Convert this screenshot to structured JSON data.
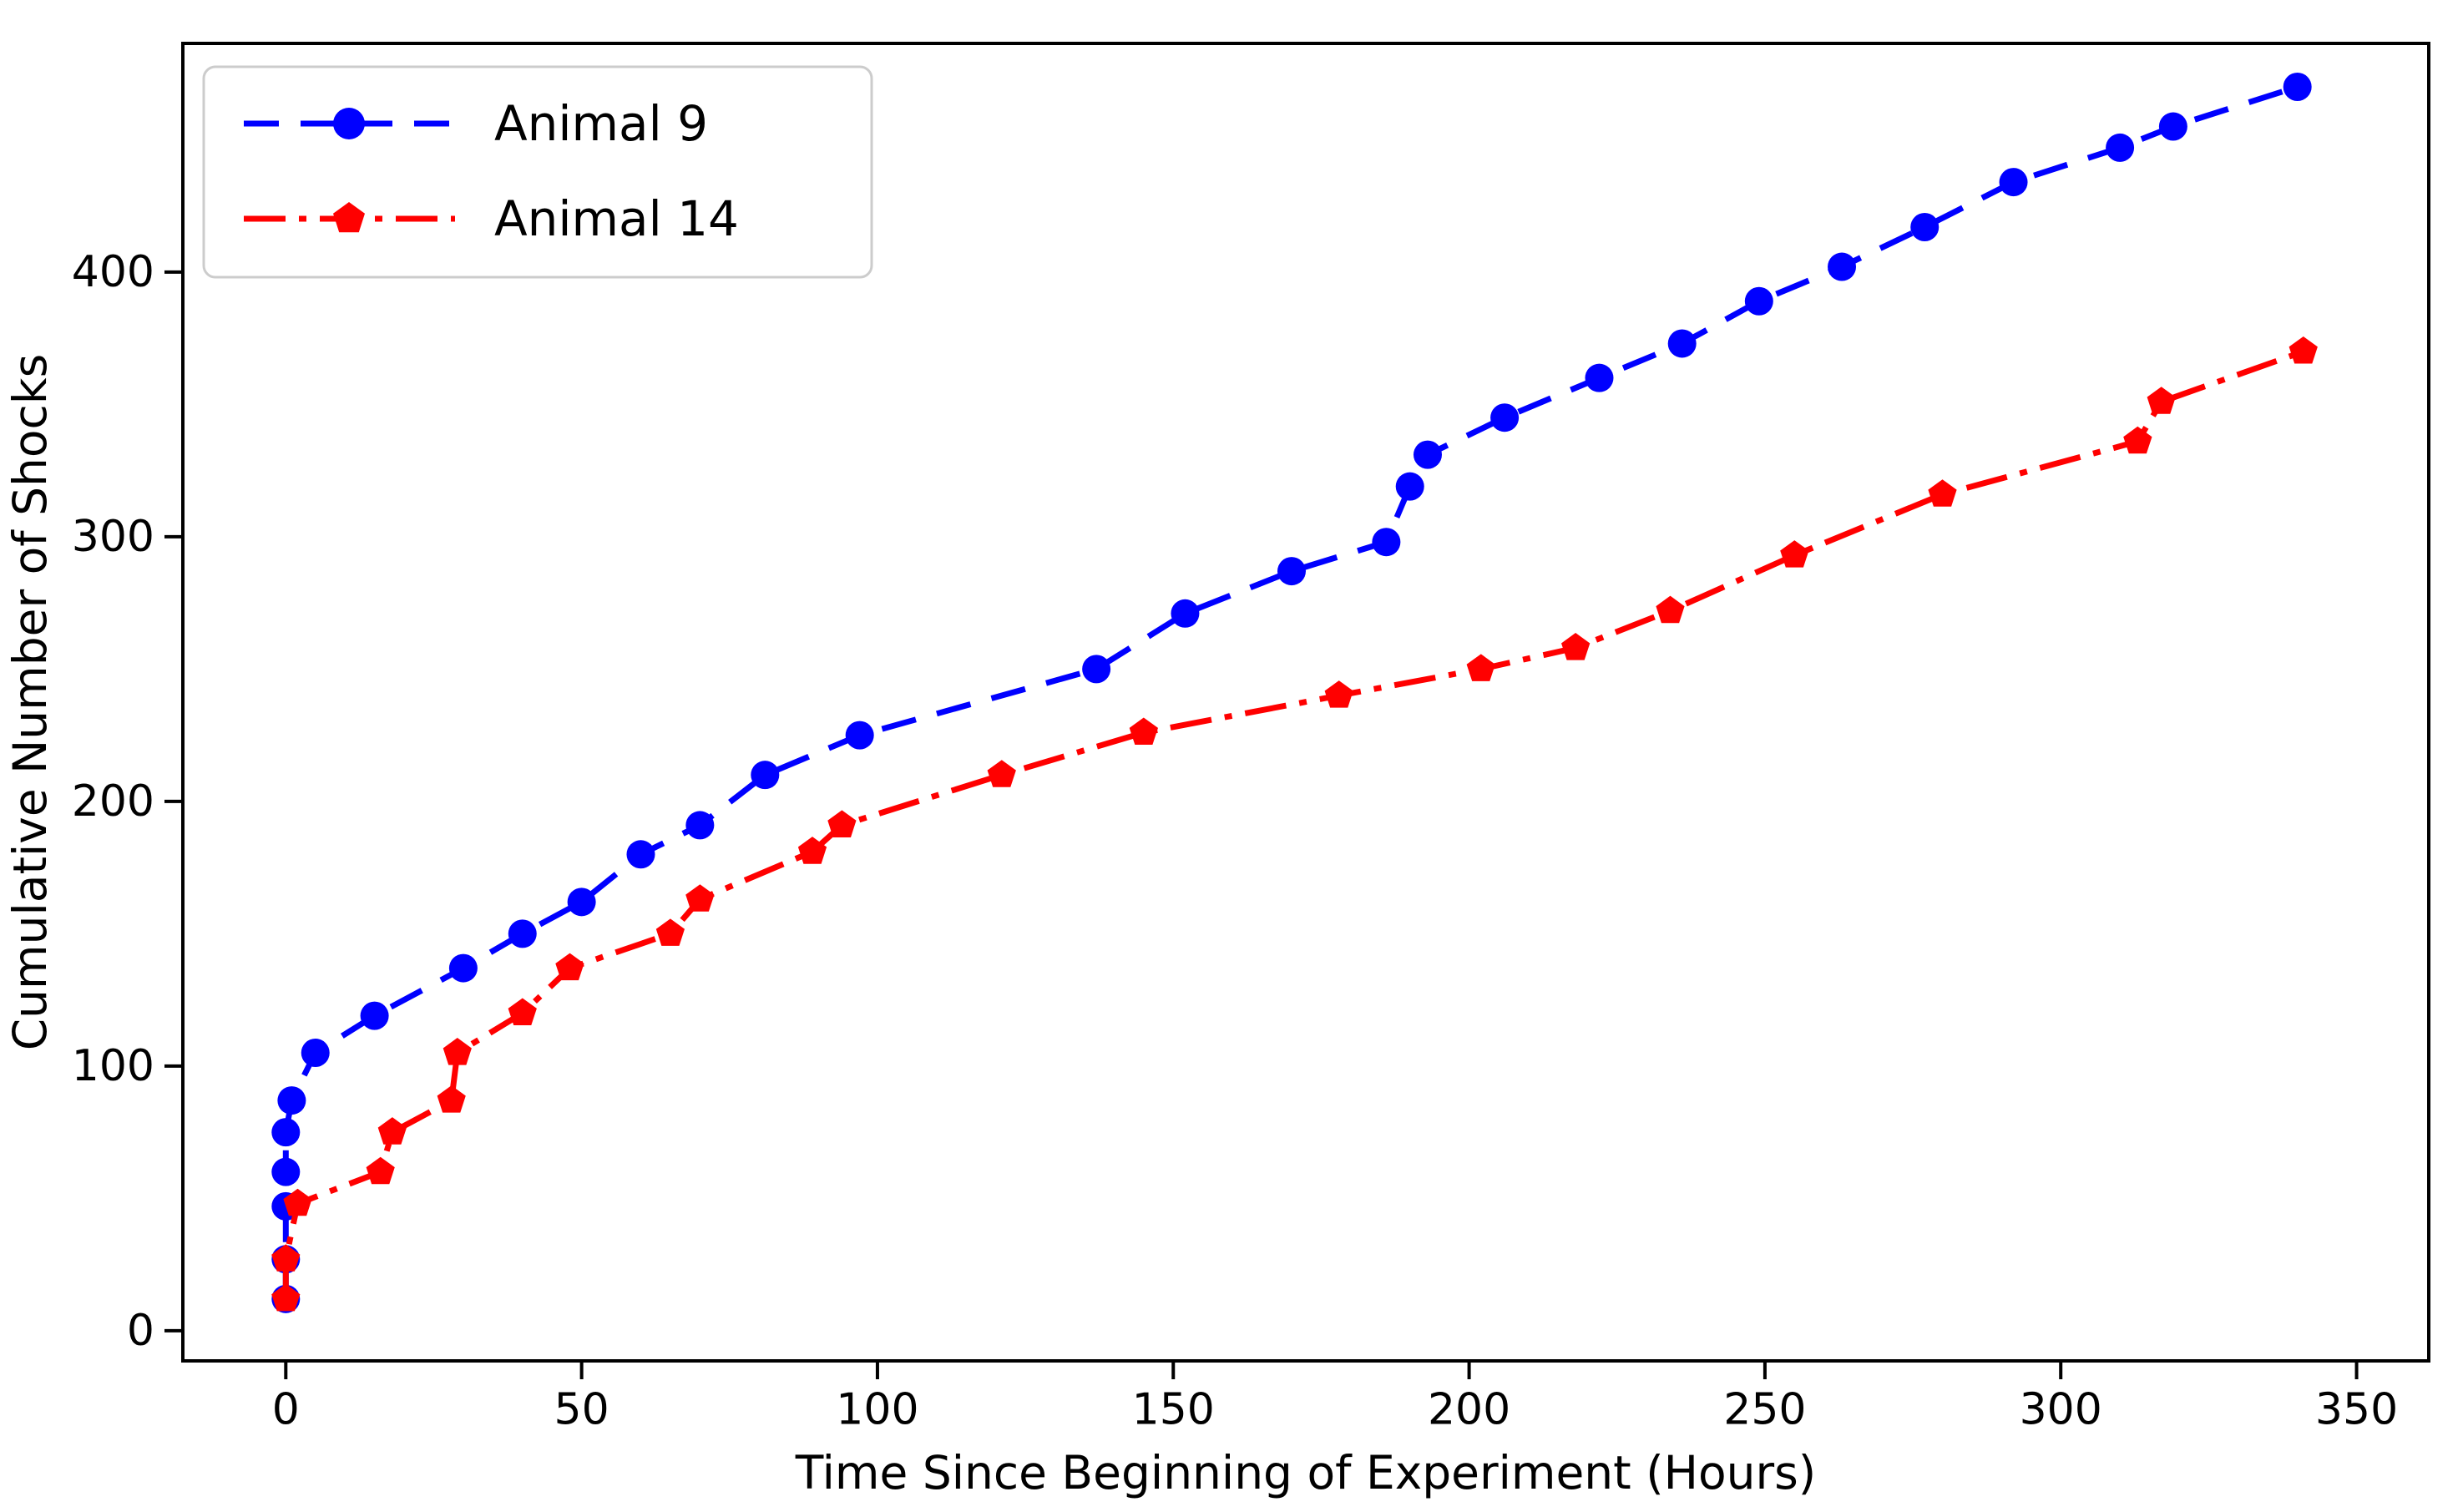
{
  "chart_data": {
    "type": "line",
    "title": "",
    "xlabel": "Time Since Beginning of Experiment (Hours)",
    "ylabel": "Cumulative Number of Shocks",
    "x_ticks": [
      0,
      50,
      100,
      150,
      200,
      250,
      300,
      350
    ],
    "y_ticks": [
      0,
      100,
      200,
      300,
      400
    ],
    "xlim": [
      -17.4,
      362.2
    ],
    "ylim": [
      -11.4,
      486.4
    ],
    "grid": false,
    "background_color": "#ffffff",
    "axis_color": "#000000",
    "legend": {
      "position": "upper left",
      "border_color": "#cccccc",
      "fill_color": "#ffffff",
      "entries": [
        {
          "label": "Animal 9"
        },
        {
          "label": "Animal 14"
        }
      ]
    },
    "series": [
      {
        "name": "Animal 9",
        "color": "#0000ff",
        "linestyle": "dashed",
        "marker": "circle",
        "x": [
          0,
          0,
          0,
          0,
          0,
          1,
          5,
          15,
          30,
          40,
          50,
          60,
          70,
          81,
          97,
          137,
          152,
          170,
          186,
          190,
          193,
          206,
          222,
          236,
          249,
          263,
          277,
          292,
          310,
          319,
          340
        ],
        "y": [
          12,
          27,
          47,
          60,
          75,
          87,
          105,
          119,
          137,
          150,
          162,
          180,
          191,
          210,
          225,
          250,
          271,
          287,
          298,
          319,
          331,
          345,
          360,
          373,
          389,
          402,
          417,
          434,
          447,
          455,
          470
        ]
      },
      {
        "name": "Animal 14",
        "color": "#ff0000",
        "linestyle": "dashdot",
        "marker": "pentagon",
        "x": [
          0,
          0,
          2,
          16,
          18,
          28,
          29,
          40,
          48,
          65,
          70,
          89,
          94,
          121,
          145,
          178,
          202,
          218,
          234,
          255,
          280,
          313,
          317,
          341
        ],
        "y": [
          12,
          27,
          48,
          60,
          75,
          87,
          105,
          120,
          137,
          150,
          163,
          181,
          191,
          210,
          226,
          240,
          250,
          258,
          272,
          293,
          316,
          336,
          351,
          370
        ]
      }
    ]
  }
}
